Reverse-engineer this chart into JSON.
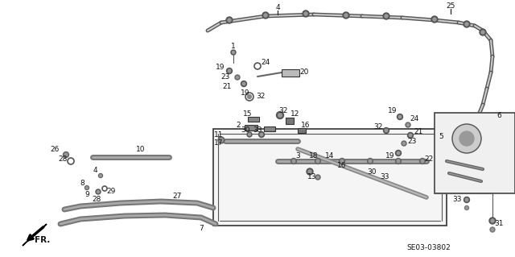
{
  "bg_color": "#ffffff",
  "diagram_code": "SE03-03802",
  "line_color": "#333333",
  "text_color": "#111111"
}
